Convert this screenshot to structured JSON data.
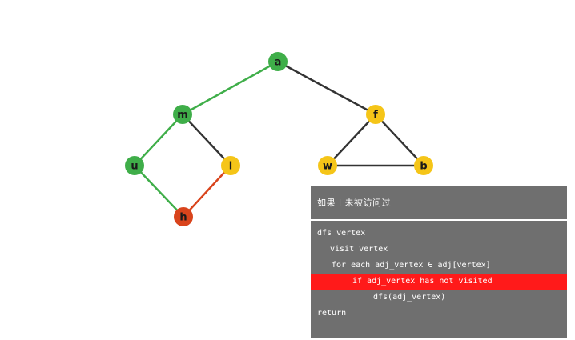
{
  "colors": {
    "visited_green": "#3fae49",
    "frontier_yellow": "#f5c518",
    "current_red": "#d9441c",
    "tree_edge_green": "#3fae49",
    "active_edge_red": "#d9441c",
    "normal_edge": "#333333",
    "panel_bg": "#6f6f6f",
    "highlight_bg": "#ff1a1a"
  },
  "graph": {
    "nodes": [
      {
        "id": "a",
        "label": "a",
        "state": "visited"
      },
      {
        "id": "m",
        "label": "m",
        "state": "visited"
      },
      {
        "id": "f",
        "label": "f",
        "state": "frontier"
      },
      {
        "id": "u",
        "label": "u",
        "state": "visited"
      },
      {
        "id": "l",
        "label": "l",
        "state": "frontier"
      },
      {
        "id": "w",
        "label": "w",
        "state": "frontier"
      },
      {
        "id": "b",
        "label": "b",
        "state": "frontier"
      },
      {
        "id": "h",
        "label": "h",
        "state": "current"
      }
    ],
    "edges": [
      {
        "from": "a",
        "to": "m",
        "style": "tree"
      },
      {
        "from": "a",
        "to": "f",
        "style": "normal"
      },
      {
        "from": "m",
        "to": "u",
        "style": "tree"
      },
      {
        "from": "m",
        "to": "l",
        "style": "normal"
      },
      {
        "from": "u",
        "to": "h",
        "style": "tree"
      },
      {
        "from": "l",
        "to": "h",
        "style": "active"
      },
      {
        "from": "f",
        "to": "w",
        "style": "normal"
      },
      {
        "from": "f",
        "to": "b",
        "style": "normal"
      },
      {
        "from": "w",
        "to": "b",
        "style": "normal"
      }
    ]
  },
  "panel": {
    "header": "如果 l 未被访问过",
    "lines": [
      {
        "text": "dfs vertex",
        "highlight": false
      },
      {
        "text": "visit vertex",
        "highlight": false
      },
      {
        "text": "for each adj_vertex ∈ adj[vertex]",
        "highlight": false
      },
      {
        "text": "if adj_vertex has not visited",
        "highlight": true
      },
      {
        "text": "dfs(adj_vertex)",
        "highlight": false
      },
      {
        "text": "return",
        "highlight": false
      }
    ]
  }
}
